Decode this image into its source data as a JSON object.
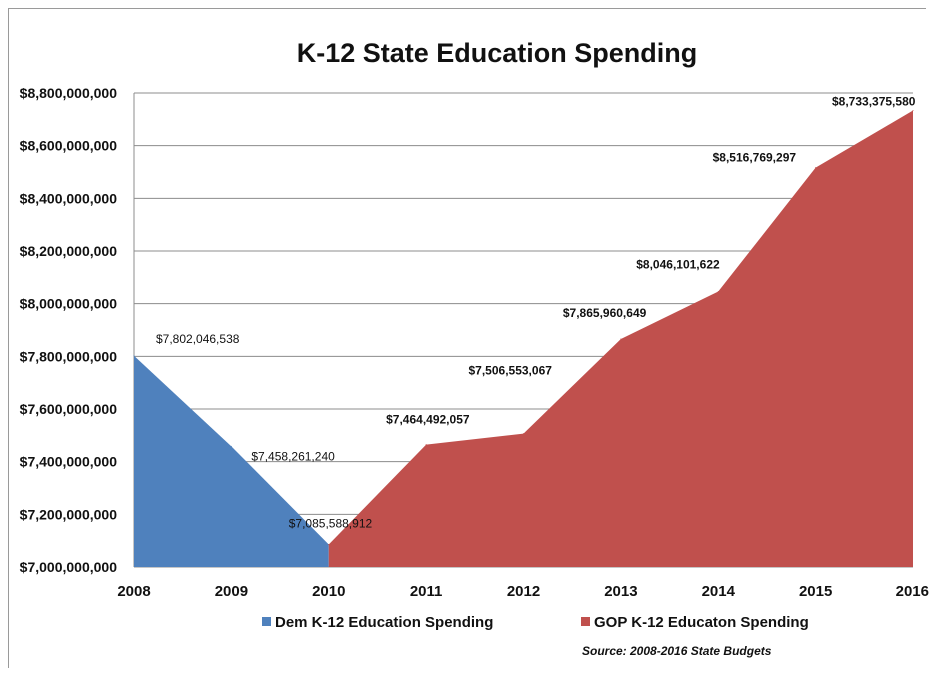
{
  "chart_data": {
    "type": "area",
    "title": "K-12 State Education Spending",
    "xlabel": "",
    "ylabel": "",
    "categories": [
      "2008",
      "2009",
      "2010",
      "2011",
      "2012",
      "2013",
      "2014",
      "2015",
      "2016"
    ],
    "ylim": [
      7000000000,
      8800000000
    ],
    "y_ticks": [
      "$7,000,000,000",
      "$7,200,000,000",
      "$7,400,000,000",
      "$7,600,000,000",
      "$7,800,000,000",
      "$8,000,000,000",
      "$8,200,000,000",
      "$8,400,000,000",
      "$8,600,000,000",
      "$8,800,000,000"
    ],
    "y_tick_values": [
      7000000000,
      7200000000,
      7400000000,
      7600000000,
      7800000000,
      8000000000,
      8200000000,
      8400000000,
      8600000000,
      8800000000
    ],
    "grid": true,
    "legend_position": "bottom",
    "series": [
      {
        "name": "Dem K-12 Education Spending",
        "color": "#4f81bd",
        "x": [
          "2008",
          "2009",
          "2010"
        ],
        "values": [
          7802046538,
          7458261240,
          7085588912
        ],
        "labels": [
          "$7,802,046,538",
          "$7,458,261,240",
          "$7,085,588,912"
        ]
      },
      {
        "name": "GOP K-12 Educaton Spending",
        "color": "#c0504d",
        "x": [
          "2010",
          "2011",
          "2012",
          "2013",
          "2014",
          "2015",
          "2016"
        ],
        "values": [
          7085588912,
          7464492057,
          7506553067,
          7865960649,
          8046101622,
          8516769297,
          8733375580
        ],
        "labels": [
          "",
          "$7,464,492,057",
          "$7,506,553,067",
          "$7,865,960,649",
          "$8,046,101,622",
          "$8,516,769,297",
          "$8,733,375,580"
        ]
      }
    ],
    "source": "Source: 2008-2016 State Budgets"
  }
}
